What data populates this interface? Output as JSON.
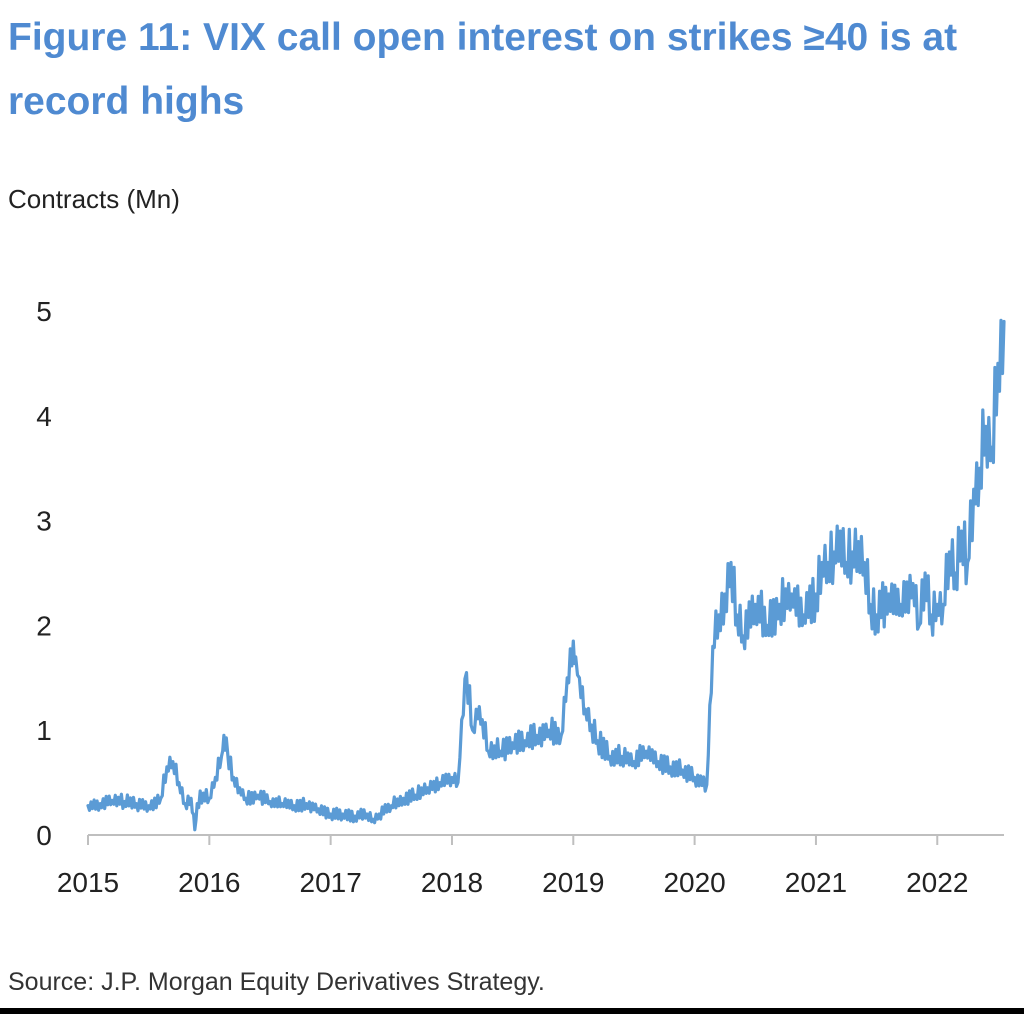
{
  "title": "Figure 11: VIX call open interest on strikes ≥40 is at record highs",
  "source": "Source: J.P. Morgan Equity Derivatives Strategy.",
  "colors": {
    "title": "#4f8ad1",
    "series": "#5b9bd5",
    "axis": "#bfbfbf"
  },
  "chart_data": {
    "type": "line",
    "title": "Figure 11: VIX call open interest on strikes ≥40 is at record highs",
    "ylabel": "Contracts (Mn)",
    "xlabel": "",
    "ylim": [
      0,
      5
    ],
    "xlim": [
      2015,
      2022.55
    ],
    "yticks": [
      "0",
      "1",
      "2",
      "3",
      "4",
      "5"
    ],
    "xticks": [
      "2015",
      "2016",
      "2017",
      "2018",
      "2019",
      "2020",
      "2021",
      "2022"
    ],
    "grid": false,
    "legend": "none",
    "series": [
      {
        "x": [
          2015.0,
          2015.1,
          2015.2,
          2015.3,
          2015.4,
          2015.5,
          2015.6,
          2015.65,
          2015.7,
          2015.75,
          2015.8,
          2015.85,
          2015.88,
          2015.9,
          2015.95,
          2016.0,
          2016.05,
          2016.1,
          2016.12,
          2016.15,
          2016.2,
          2016.25,
          2016.3,
          2016.4,
          2016.5,
          2016.6,
          2016.7,
          2016.8,
          2016.9,
          2017.0,
          2017.1,
          2017.2,
          2017.3,
          2017.35,
          2017.4,
          2017.5,
          2017.6,
          2017.7,
          2017.8,
          2017.9,
          2018.0,
          2018.05,
          2018.08,
          2018.12,
          2018.17,
          2018.2,
          2018.25,
          2018.3,
          2018.35,
          2018.4,
          2018.5,
          2018.6,
          2018.7,
          2018.8,
          2018.9,
          2018.95,
          2019.0,
          2019.02,
          2019.05,
          2019.1,
          2019.15,
          2019.2,
          2019.3,
          2019.4,
          2019.5,
          2019.6,
          2019.7,
          2019.8,
          2019.9,
          2020.0,
          2020.1,
          2020.15,
          2020.2,
          2020.25,
          2020.3,
          2020.35,
          2020.4,
          2020.5,
          2020.6,
          2020.7,
          2020.8,
          2020.9,
          2021.0,
          2021.05,
          2021.1,
          2021.15,
          2021.2,
          2021.25,
          2021.3,
          2021.35,
          2021.4,
          2021.45,
          2021.5,
          2021.6,
          2021.7,
          2021.8,
          2021.85,
          2021.9,
          2021.95,
          2022.0,
          2022.05,
          2022.1,
          2022.15,
          2022.2,
          2022.25,
          2022.3,
          2022.35,
          2022.4,
          2022.45,
          2022.5,
          2022.55
        ],
        "y": [
          0.28,
          0.3,
          0.33,
          0.32,
          0.3,
          0.28,
          0.35,
          0.65,
          0.7,
          0.5,
          0.3,
          0.35,
          0.05,
          0.3,
          0.4,
          0.35,
          0.55,
          0.75,
          0.95,
          0.8,
          0.55,
          0.45,
          0.35,
          0.38,
          0.32,
          0.3,
          0.28,
          0.3,
          0.25,
          0.2,
          0.2,
          0.18,
          0.2,
          0.15,
          0.2,
          0.28,
          0.35,
          0.38,
          0.45,
          0.5,
          0.55,
          0.5,
          1.1,
          1.55,
          1.0,
          1.2,
          1.1,
          0.8,
          0.85,
          0.8,
          0.88,
          0.9,
          0.95,
          1.0,
          0.95,
          1.5,
          1.85,
          1.7,
          1.5,
          1.2,
          1.05,
          0.9,
          0.75,
          0.75,
          0.7,
          0.8,
          0.7,
          0.65,
          0.62,
          0.55,
          0.48,
          1.8,
          2.1,
          2.3,
          2.6,
          2.1,
          1.9,
          2.2,
          2.0,
          2.2,
          2.3,
          2.1,
          2.3,
          2.6,
          2.6,
          2.7,
          2.9,
          2.6,
          2.7,
          2.8,
          2.6,
          2.2,
          2.1,
          2.3,
          2.2,
          2.4,
          2.0,
          2.5,
          2.1,
          2.2,
          2.2,
          2.7,
          2.5,
          2.9,
          2.6,
          3.3,
          3.5,
          3.9,
          3.7,
          4.5,
          4.9
        ]
      }
    ]
  }
}
